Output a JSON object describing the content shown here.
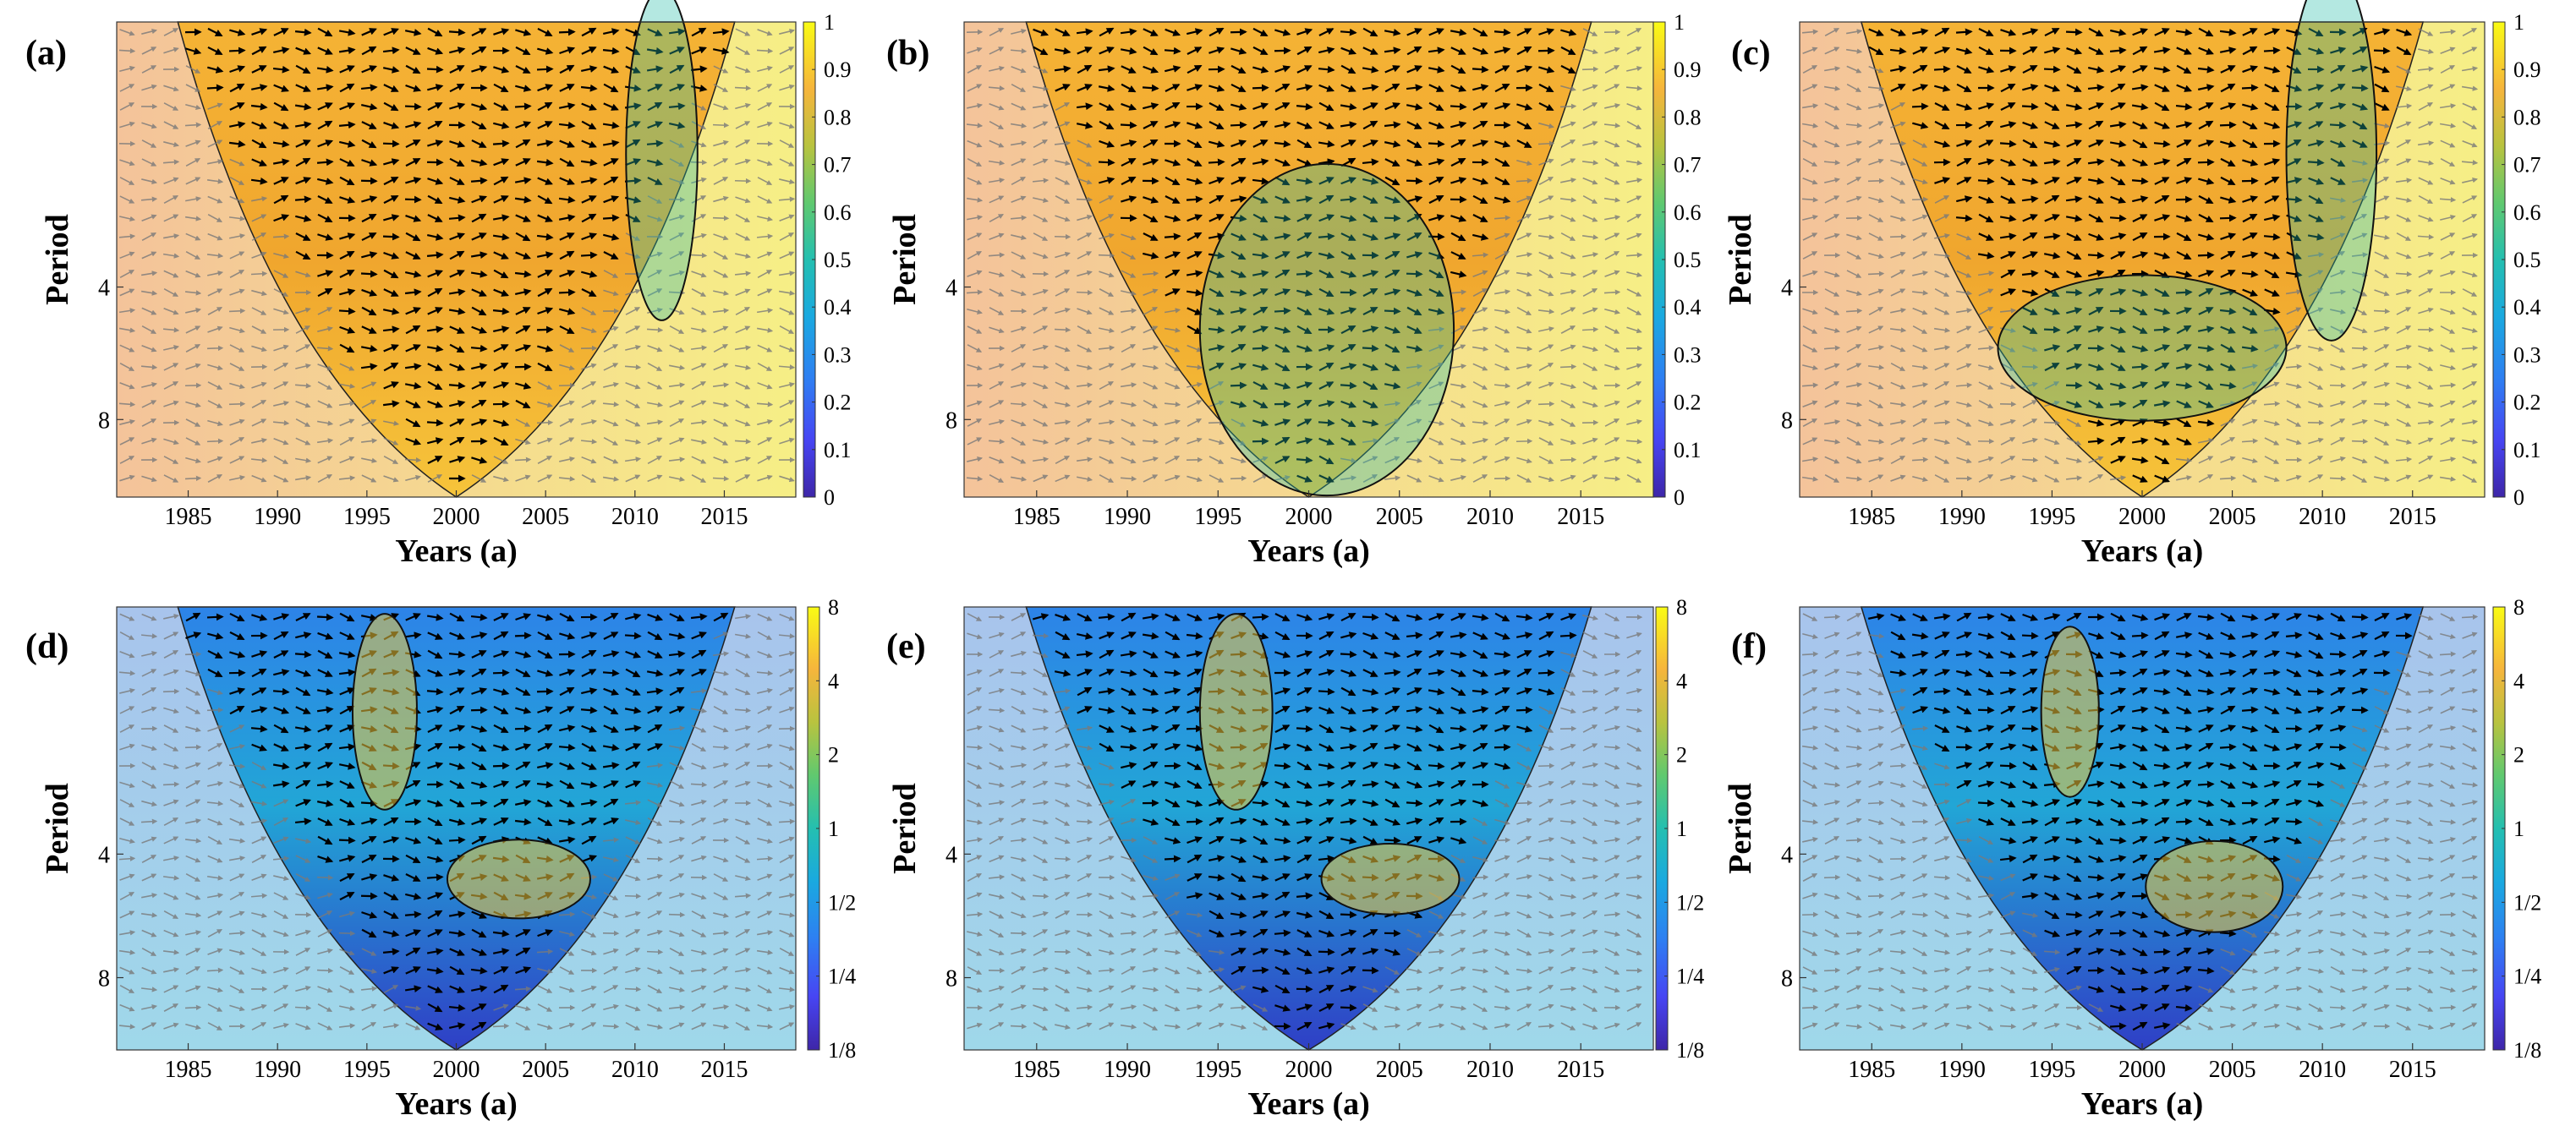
{
  "figure": {
    "panel_labels": [
      "(a)",
      "(b)",
      "(c)",
      "(d)",
      "(e)",
      "(f)"
    ]
  },
  "chart_data": [
    {
      "type": "heatmap",
      "panel": "(a)",
      "subtype": "wavelet coherence",
      "xlabel": "Years (a)",
      "ylabel": "Period",
      "xticks": [
        1985,
        1990,
        1995,
        2000,
        2005,
        2010,
        2015
      ],
      "xlim": [
        1981,
        2019
      ],
      "yticks": [
        4,
        8
      ],
      "ylim": [
        1,
        12
      ],
      "colorbar": {
        "ticks": [
          "1",
          "0.9",
          "0.8",
          "0.7",
          "0.6",
          "0.5",
          "0.4",
          "0.3",
          "0.2",
          "0.1",
          "0"
        ],
        "range": [
          0,
          1
        ]
      },
      "cone_of_influence_apex": 2000,
      "significance_contours": [
        {
          "x_center": 2011.5,
          "period_center": 2.0,
          "half_width_years": 2.0,
          "half_height_period": 1.4
        }
      ],
      "background_values": "mostly 0.75-0.9 inside cone"
    },
    {
      "type": "heatmap",
      "panel": "(b)",
      "subtype": "wavelet coherence",
      "xlabel": "Years (a)",
      "ylabel": "Period",
      "xticks": [
        1985,
        1990,
        1995,
        2000,
        2005,
        2010,
        2015
      ],
      "xlim": [
        1981,
        2019
      ],
      "yticks": [
        4,
        8
      ],
      "ylim": [
        1,
        12
      ],
      "colorbar": {
        "ticks": [
          "1",
          "0.9",
          "0.8",
          "0.7",
          "0.6",
          "0.5",
          "0.4",
          "0.3",
          "0.2",
          "0.1",
          "0"
        ],
        "range": [
          0,
          1
        ]
      },
      "cone_of_influence_apex": 2000,
      "significance_contours": [
        {
          "x_center": 2001.0,
          "period_center": 5.0,
          "half_width_years": 7.0,
          "half_height_period": 3.5
        }
      ]
    },
    {
      "type": "heatmap",
      "panel": "(c)",
      "subtype": "wavelet coherence",
      "xlabel": "Years (a)",
      "ylabel": "Period",
      "xticks": [
        1985,
        1990,
        1995,
        2000,
        2005,
        2010,
        2015
      ],
      "xlim": [
        1981,
        2019
      ],
      "yticks": [
        4,
        8
      ],
      "ylim": [
        1,
        12
      ],
      "colorbar": {
        "ticks": [
          "1",
          "0.9",
          "0.8",
          "0.7",
          "0.6",
          "0.5",
          "0.4",
          "0.3",
          "0.2",
          "0.1",
          "0"
        ],
        "range": [
          0,
          1
        ]
      },
      "cone_of_influence_apex": 2000,
      "significance_contours": [
        {
          "x_center": 2010.5,
          "period_center": 2.0,
          "half_width_years": 2.5,
          "half_height_period": 1.5
        },
        {
          "x_center": 2000.0,
          "period_center": 5.5,
          "half_width_years": 8.0,
          "half_height_period": 2.0
        }
      ]
    },
    {
      "type": "heatmap",
      "panel": "(d)",
      "subtype": "cross wavelet power",
      "xlabel": "Years (a)",
      "ylabel": "Period",
      "xticks": [
        1985,
        1990,
        1995,
        2000,
        2005,
        2010,
        2015
      ],
      "xlim": [
        1981,
        2019
      ],
      "yticks": [
        4,
        8
      ],
      "ylim": [
        1,
        12
      ],
      "colorbar": {
        "ticks": [
          "8",
          "4",
          "2",
          "1",
          "1/2",
          "1/4",
          "1/8"
        ],
        "range": [
          "1/8",
          "8"
        ]
      },
      "cone_of_influence_apex": 2000,
      "significance_contours": [
        {
          "x_center": 1996.0,
          "period_center": 1.8,
          "half_width_years": 1.8,
          "half_height_period": 0.9
        },
        {
          "x_center": 2003.5,
          "period_center": 4.6,
          "half_width_years": 4.0,
          "half_height_period": 1.0
        }
      ]
    },
    {
      "type": "heatmap",
      "panel": "(e)",
      "subtype": "cross wavelet power",
      "xlabel": "Years (a)",
      "ylabel": "Period",
      "xticks": [
        1985,
        1990,
        1995,
        2000,
        2005,
        2010,
        2015
      ],
      "xlim": [
        1981,
        2019
      ],
      "yticks": [
        4,
        8
      ],
      "ylim": [
        1,
        12
      ],
      "colorbar": {
        "ticks": [
          "8",
          "4",
          "2",
          "1",
          "1/2",
          "1/4",
          "1/8"
        ],
        "range": [
          "1/8",
          "8"
        ]
      },
      "cone_of_influence_apex": 2000,
      "significance_contours": [
        {
          "x_center": 1996.0,
          "period_center": 1.8,
          "half_width_years": 2.0,
          "half_height_period": 0.9
        },
        {
          "x_center": 2004.5,
          "period_center": 4.6,
          "half_width_years": 3.8,
          "half_height_period": 0.9
        }
      ]
    },
    {
      "type": "heatmap",
      "panel": "(f)",
      "subtype": "cross wavelet power",
      "xlabel": "Years (a)",
      "ylabel": "Period",
      "xticks": [
        1985,
        1990,
        1995,
        2000,
        2005,
        2010,
        2015
      ],
      "xlim": [
        1981,
        2019
      ],
      "yticks": [
        4,
        8
      ],
      "ylim": [
        1,
        12
      ],
      "colorbar": {
        "ticks": [
          "8",
          "4",
          "2",
          "1",
          "1/2",
          "1/4",
          "1/8"
        ],
        "range": [
          "1/8",
          "8"
        ]
      },
      "cone_of_influence_apex": 2000,
      "significance_contours": [
        {
          "x_center": 1996.0,
          "period_center": 1.8,
          "half_width_years": 1.6,
          "half_height_period": 0.8
        },
        {
          "x_center": 2004.0,
          "period_center": 4.8,
          "half_width_years": 3.8,
          "half_height_period": 1.2
        }
      ]
    }
  ]
}
